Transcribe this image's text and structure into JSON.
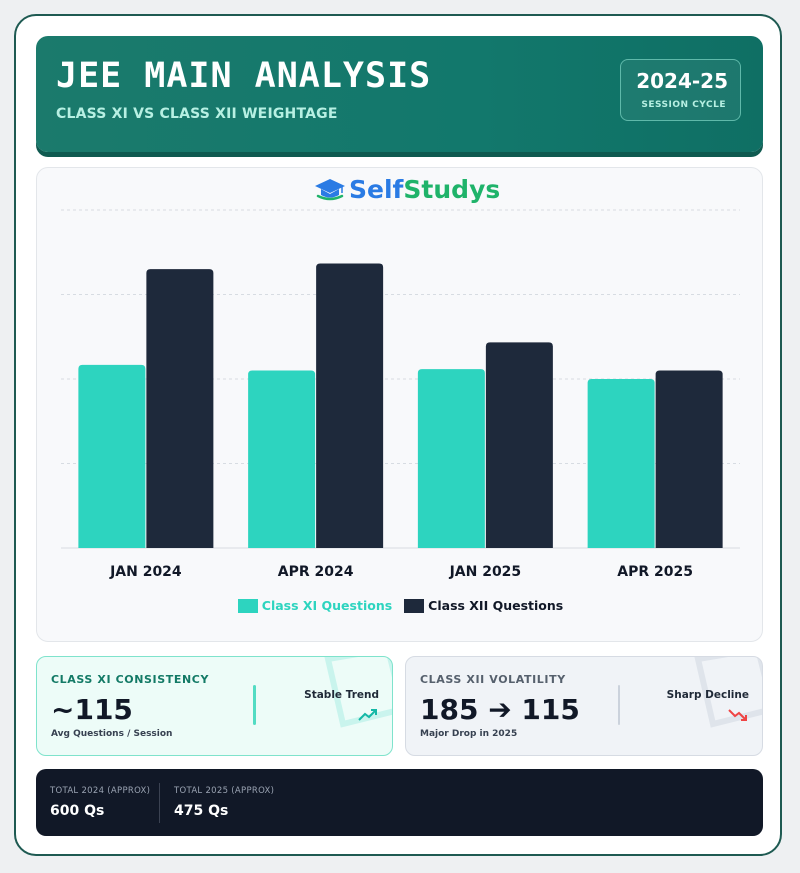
{
  "header": {
    "title": "JEE MAIN ANALYSIS",
    "subtitle": "CLASS XI VS CLASS XII WEIGHTAGE",
    "session_year": "2024-25",
    "session_label": "SESSION CYCLE"
  },
  "logo": {
    "part1": "Self",
    "part2": "Studys"
  },
  "chart_data": {
    "type": "bar",
    "categories": [
      "JAN 2024",
      "APR 2024",
      "JAN 2025",
      "APR 2025"
    ],
    "series": [
      {
        "name": "Class XI Questions",
        "color": "#2dd4bf",
        "values": [
          130,
          126,
          127,
          120
        ]
      },
      {
        "name": "Class XII Questions",
        "color": "#1e293b",
        "values": [
          198,
          202,
          146,
          126
        ]
      }
    ],
    "ylim": [
      0,
      240
    ],
    "grid": true,
    "legend_position": "bottom-center"
  },
  "stats": {
    "class_xi": {
      "heading": "CLASS XI CONSISTENCY",
      "value": "~115",
      "sub": "Avg Questions / Session",
      "trend": "Stable Trend",
      "trend_icon": "trend-up-icon",
      "accent": "#2dd4bf"
    },
    "class_xii": {
      "heading": "CLASS XII VOLATILITY",
      "value": "185 ➔ 115",
      "sub": "Major Drop in 2025",
      "trend": "Sharp Decline",
      "trend_icon": "trend-down-icon",
      "accent": "#ef4444"
    }
  },
  "totals": [
    {
      "label": "TOTAL 2024 (APPROX)",
      "value": "600 Qs"
    },
    {
      "label": "TOTAL 2025 (APPROX)",
      "value": "475 Qs"
    }
  ]
}
